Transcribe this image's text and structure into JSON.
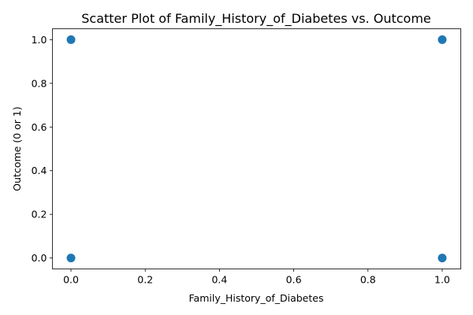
{
  "chart_data": {
    "type": "scatter",
    "title": "Scatter Plot of Family_History_of_Diabetes vs. Outcome",
    "xlabel": "Family_History_of_Diabetes",
    "ylabel": "Outcome (0 or 1)",
    "xlim": [
      -0.05,
      1.05
    ],
    "ylim": [
      -0.05,
      1.05
    ],
    "x_ticks": [
      "0.0",
      "0.2",
      "0.4",
      "0.6",
      "0.8",
      "1.0"
    ],
    "y_ticks": [
      "0.0",
      "0.2",
      "0.4",
      "0.6",
      "0.8",
      "1.0"
    ],
    "grid": false,
    "points": [
      {
        "x": 0,
        "y": 0
      },
      {
        "x": 0,
        "y": 1
      },
      {
        "x": 1,
        "y": 0
      },
      {
        "x": 1,
        "y": 1
      }
    ],
    "marker_color": "#1f77b4"
  }
}
